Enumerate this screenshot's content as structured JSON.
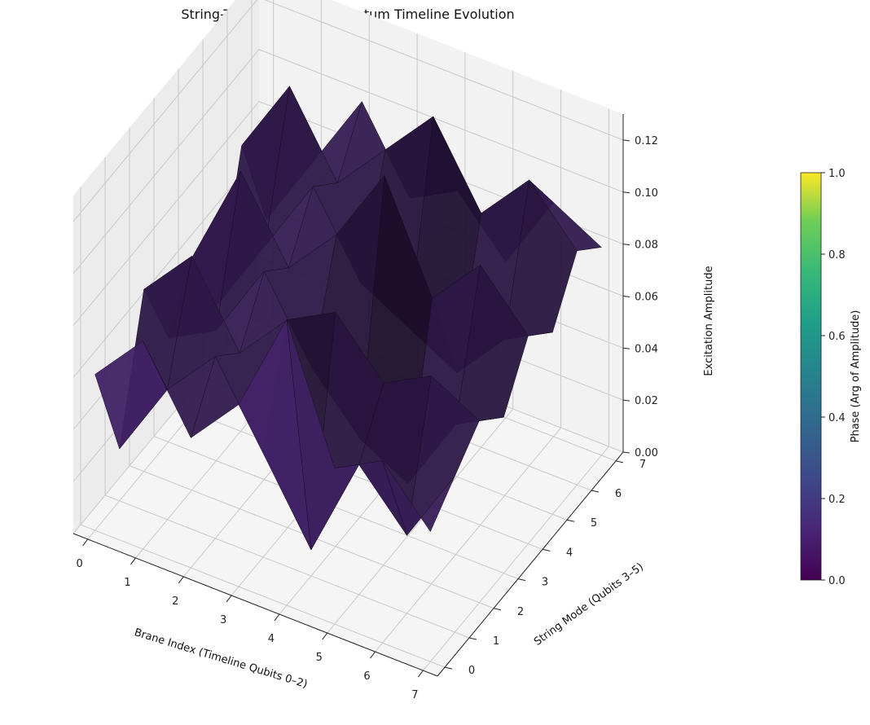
{
  "chart_data": {
    "type": "surface3d",
    "title": "String-Theory Inspired Quantum Timeline Evolution",
    "xlabel": "Brane Index (Timeline Qubits 0–2)",
    "ylabel": "String Mode (Qubits 3–5)",
    "zlabel": "Excitation Amplitude",
    "x_ticks": [
      "0",
      "1",
      "2",
      "3",
      "4",
      "5",
      "6",
      "7"
    ],
    "y_ticks": [
      "0",
      "1",
      "2",
      "3",
      "4",
      "5",
      "6",
      "7"
    ],
    "z_ticks": [
      "0.00",
      "0.02",
      "0.04",
      "0.06",
      "0.08",
      "0.10",
      "0.12"
    ],
    "zlim": [
      0,
      0.13
    ],
    "colorbar": {
      "label": "Phase (Arg of Amplitude)",
      "ticks": [
        "0.0",
        "0.2",
        "0.4",
        "0.6",
        "0.8",
        "1.0"
      ],
      "range": [
        0,
        1
      ],
      "colormap": "viridis"
    },
    "surface_color": "#3b1f5c",
    "x": [
      0,
      1,
      2,
      3,
      4,
      5,
      6,
      7
    ],
    "y": [
      0,
      1,
      2,
      3,
      4,
      5,
      6,
      7
    ],
    "z": [
      [
        0.06,
        0.02,
        0.07,
        0.04,
        0.06,
        0.03,
        0.08,
        0.04
      ],
      [
        0.08,
        0.05,
        0.09,
        0.05,
        0.1,
        0.06,
        0.11,
        0.07
      ],
      [
        0.05,
        0.07,
        0.06,
        0.08,
        0.07,
        0.09,
        0.08,
        0.1
      ],
      [
        0.07,
        0.04,
        0.08,
        0.05,
        0.09,
        0.06,
        0.1,
        0.07
      ],
      [
        0.11,
        0.01,
        0.09,
        0.03,
        0.12,
        0.05,
        0.12,
        0.08
      ],
      [
        0.06,
        0.05,
        0.07,
        0.02,
        0.08,
        0.04,
        0.09,
        0.06
      ],
      [
        0.07,
        0.03,
        0.08,
        0.05,
        0.1,
        0.06,
        0.11,
        0.09
      ],
      [
        0.05,
        0.06,
        0.07,
        0.06,
        0.08,
        0.07,
        0.09,
        0.08
      ]
    ]
  }
}
